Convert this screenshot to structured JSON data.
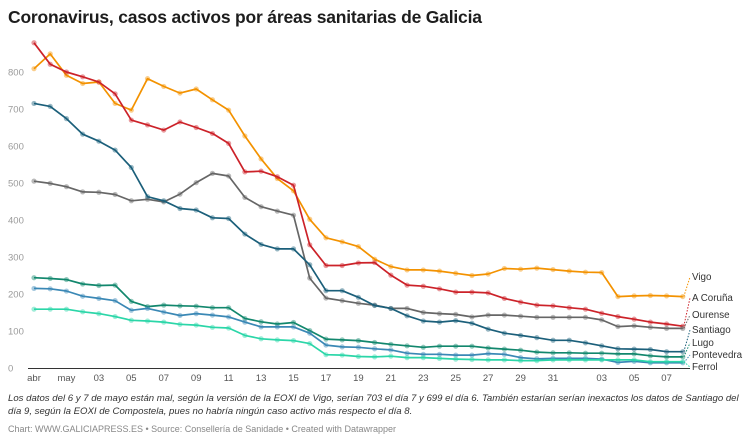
{
  "chart_data": {
    "type": "line",
    "title": "Coronavirus, casos activos por áreas sanitarias de Galicia",
    "x_start": "2020-04-29",
    "x_end": "2020-06-08",
    "x_tick_labels": [
      {
        "index": 0,
        "label": "abr"
      },
      {
        "index": 2,
        "label": "may"
      },
      {
        "index": 4,
        "label": "03"
      },
      {
        "index": 6,
        "label": "05"
      },
      {
        "index": 8,
        "label": "07"
      },
      {
        "index": 10,
        "label": "09"
      },
      {
        "index": 12,
        "label": "11"
      },
      {
        "index": 14,
        "label": "13"
      },
      {
        "index": 16,
        "label": "15"
      },
      {
        "index": 18,
        "label": "17"
      },
      {
        "index": 20,
        "label": "19"
      },
      {
        "index": 22,
        "label": "21"
      },
      {
        "index": 24,
        "label": "23"
      },
      {
        "index": 26,
        "label": "25"
      },
      {
        "index": 28,
        "label": "27"
      },
      {
        "index": 30,
        "label": "29"
      },
      {
        "index": 32,
        "label": "31"
      },
      {
        "index": 35,
        "label": "03"
      },
      {
        "index": 37,
        "label": "05"
      },
      {
        "index": 39,
        "label": "07"
      }
    ],
    "y_ticks": [
      "0",
      "100",
      "200",
      "300",
      "400",
      "500",
      "600",
      "700",
      "800"
    ],
    "ylim": [
      0,
      880
    ],
    "grid": false,
    "legend": "direct labels right",
    "series": [
      {
        "name": "Vigo",
        "color": "#f39200",
        "values": [
          809,
          849,
          791,
          769,
          773,
          715,
          697,
          782,
          761,
          743,
          754,
          725,
          697,
          627,
          565,
          512,
          479,
          402,
          352,
          341,
          328,
          294,
          274,
          265,
          265,
          262,
          256,
          250,
          254,
          269,
          267,
          270,
          266,
          262,
          259,
          258,
          193,
          195,
          196,
          195,
          193
        ]
      },
      {
        "name": "A Coruña",
        "color": "#cc2229",
        "values": [
          879,
          821,
          800,
          787,
          773,
          741,
          670,
          657,
          643,
          665,
          650,
          634,
          607,
          530,
          532,
          517,
          494,
          333,
          277,
          277,
          284,
          285,
          251,
          224,
          221,
          214,
          205,
          205,
          203,
          188,
          178,
          170,
          168,
          163,
          159,
          148,
          139,
          132,
          124,
          119,
          113
        ]
      },
      {
        "name": "Ourense",
        "color": "#666666",
        "values": [
          505,
          499,
          490,
          476,
          475,
          469,
          452,
          456,
          449,
          470,
          501,
          526,
          519,
          461,
          436,
          424,
          413,
          243,
          189,
          182,
          175,
          170,
          161,
          161,
          150,
          147,
          145,
          138,
          143,
          143,
          140,
          137,
          137,
          137,
          137,
          130,
          112,
          114,
          110,
          107,
          107
        ]
      },
      {
        "name": "Santiago",
        "color": "#1b5f7a",
        "values": [
          715,
          707,
          674,
          632,
          613,
          589,
          542,
          463,
          452,
          431,
          427,
          406,
          404,
          362,
          334,
          322,
          322,
          279,
          209,
          209,
          191,
          169,
          161,
          141,
          127,
          124,
          128,
          121,
          105,
          94,
          88,
          82,
          75,
          75,
          68,
          60,
          52,
          51,
          50,
          44,
          44
        ]
      },
      {
        "name": "Lugo",
        "color": "#12876d",
        "values": [
          244,
          242,
          239,
          227,
          223,
          224,
          180,
          166,
          170,
          168,
          167,
          163,
          163,
          134,
          125,
          119,
          123,
          101,
          78,
          76,
          74,
          69,
          64,
          60,
          56,
          59,
          59,
          59,
          54,
          51,
          48,
          43,
          41,
          41,
          40,
          40,
          38,
          38,
          33,
          30,
          30
        ]
      },
      {
        "name": "Pontevedra",
        "color": "#3a88b5",
        "values": [
          215,
          214,
          208,
          194,
          188,
          182,
          156,
          161,
          151,
          142,
          147,
          143,
          138,
          124,
          111,
          111,
          111,
          94,
          62,
          57,
          56,
          52,
          49,
          40,
          37,
          37,
          35,
          35,
          39,
          37,
          28,
          25,
          26,
          26,
          26,
          24,
          15,
          18,
          14,
          14,
          14
        ]
      },
      {
        "name": "Ferrol",
        "color": "#2bd6a8",
        "values": [
          159,
          159,
          159,
          152,
          147,
          139,
          129,
          127,
          124,
          118,
          116,
          110,
          108,
          88,
          79,
          76,
          74,
          66,
          36,
          35,
          31,
          30,
          32,
          28,
          28,
          26,
          24,
          23,
          22,
          22,
          20,
          20,
          22,
          22,
          22,
          22,
          22,
          22,
          17,
          17,
          17
        ]
      }
    ]
  },
  "notes": "Los datos del 6 y 7 de mayo están mal, según la versión de la EOXI de Vigo, serían 703 el día 7 y 699 el día 6. También estarían serían inexactos los datos de Santiago del día 9, según la EOXI de Compostela, pues no habría ningún caso activo más respecto el día 8.",
  "credit": "Chart: WWW.GALICIAPRESS.ES • Source: Consellería de Sanidade • Created with Datawrapper"
}
